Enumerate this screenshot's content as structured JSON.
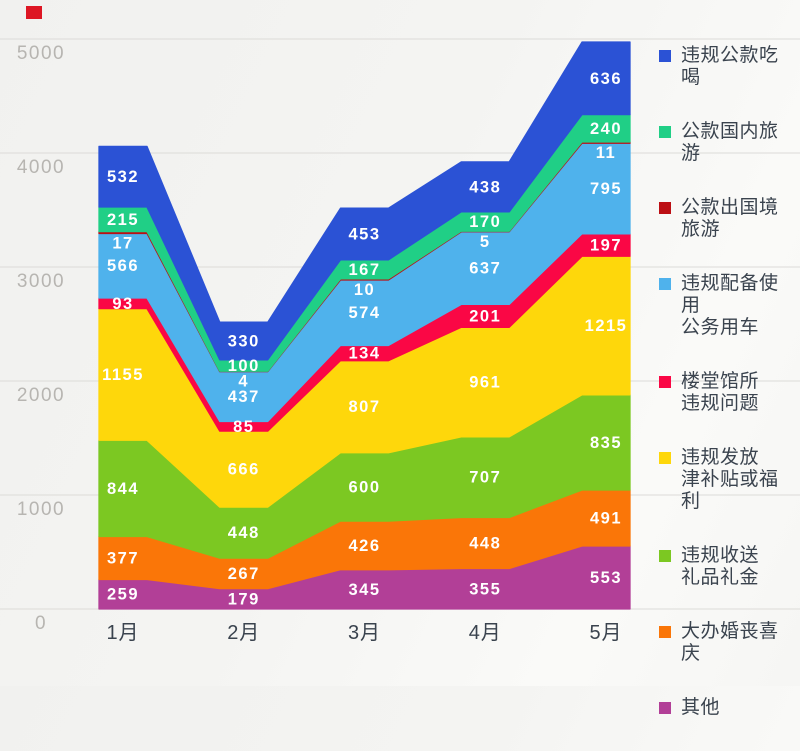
{
  "chart_data": {
    "type": "area",
    "stacked": true,
    "title": "",
    "x_categories": [
      "1月",
      "2月",
      "3月",
      "4月",
      "5月"
    ],
    "y_ticks": [
      "0",
      "1000",
      "2000",
      "3000",
      "4000",
      "5000"
    ],
    "ylim": [
      0,
      5000
    ],
    "grid": true,
    "legend_position": "right",
    "value_labels": true,
    "stack_note": "series listed top-of-stack first; legend shows same order",
    "series": [
      {
        "name": "违规公款吃喝",
        "legend_lines": [
          "违规公款吃喝"
        ],
        "color": "#2b52d5",
        "values": [
          532,
          330,
          453,
          438,
          636
        ]
      },
      {
        "name": "公款国内旅游",
        "legend_lines": [
          "公款国内旅游"
        ],
        "color": "#20cf86",
        "values": [
          215,
          100,
          167,
          170,
          240
        ]
      },
      {
        "name": "公款出国境旅游",
        "legend_lines": [
          "公款出国境",
          "旅游"
        ],
        "color": "#bc0f14",
        "values": [
          17,
          4,
          10,
          5,
          11
        ],
        "label_placement": "below-band"
      },
      {
        "name": "违规配备使用公务用车",
        "legend_lines": [
          "违规配备使用",
          "公务用车"
        ],
        "color": "#4fb2ec",
        "values": [
          566,
          437,
          574,
          637,
          795
        ]
      },
      {
        "name": "楼堂馆所违规问题",
        "legend_lines": [
          "楼堂馆所",
          "违规问题"
        ],
        "color": "#fa0745",
        "values": [
          93,
          85,
          134,
          201,
          197
        ]
      },
      {
        "name": "违规发放津补贴或福利",
        "legend_lines": [
          "违规发放",
          "津补贴或福利"
        ],
        "color": "#fed70b",
        "values": [
          1155,
          666,
          807,
          961,
          1215
        ]
      },
      {
        "name": "违规收送礼品礼金",
        "legend_lines": [
          "违规收送",
          "礼品礼金"
        ],
        "color": "#7cc822",
        "values": [
          844,
          448,
          600,
          707,
          835
        ]
      },
      {
        "name": "大办婚丧喜庆",
        "legend_lines": [
          "大办婚丧喜庆"
        ],
        "color": "#fa7608",
        "values": [
          377,
          267,
          426,
          448,
          491
        ]
      },
      {
        "name": "其他",
        "legend_lines": [
          "其他"
        ],
        "color": "#b23f97",
        "values": [
          259,
          179,
          345,
          355,
          553
        ]
      }
    ]
  },
  "decor": {
    "top_left_marker_color": "#dd1623"
  }
}
